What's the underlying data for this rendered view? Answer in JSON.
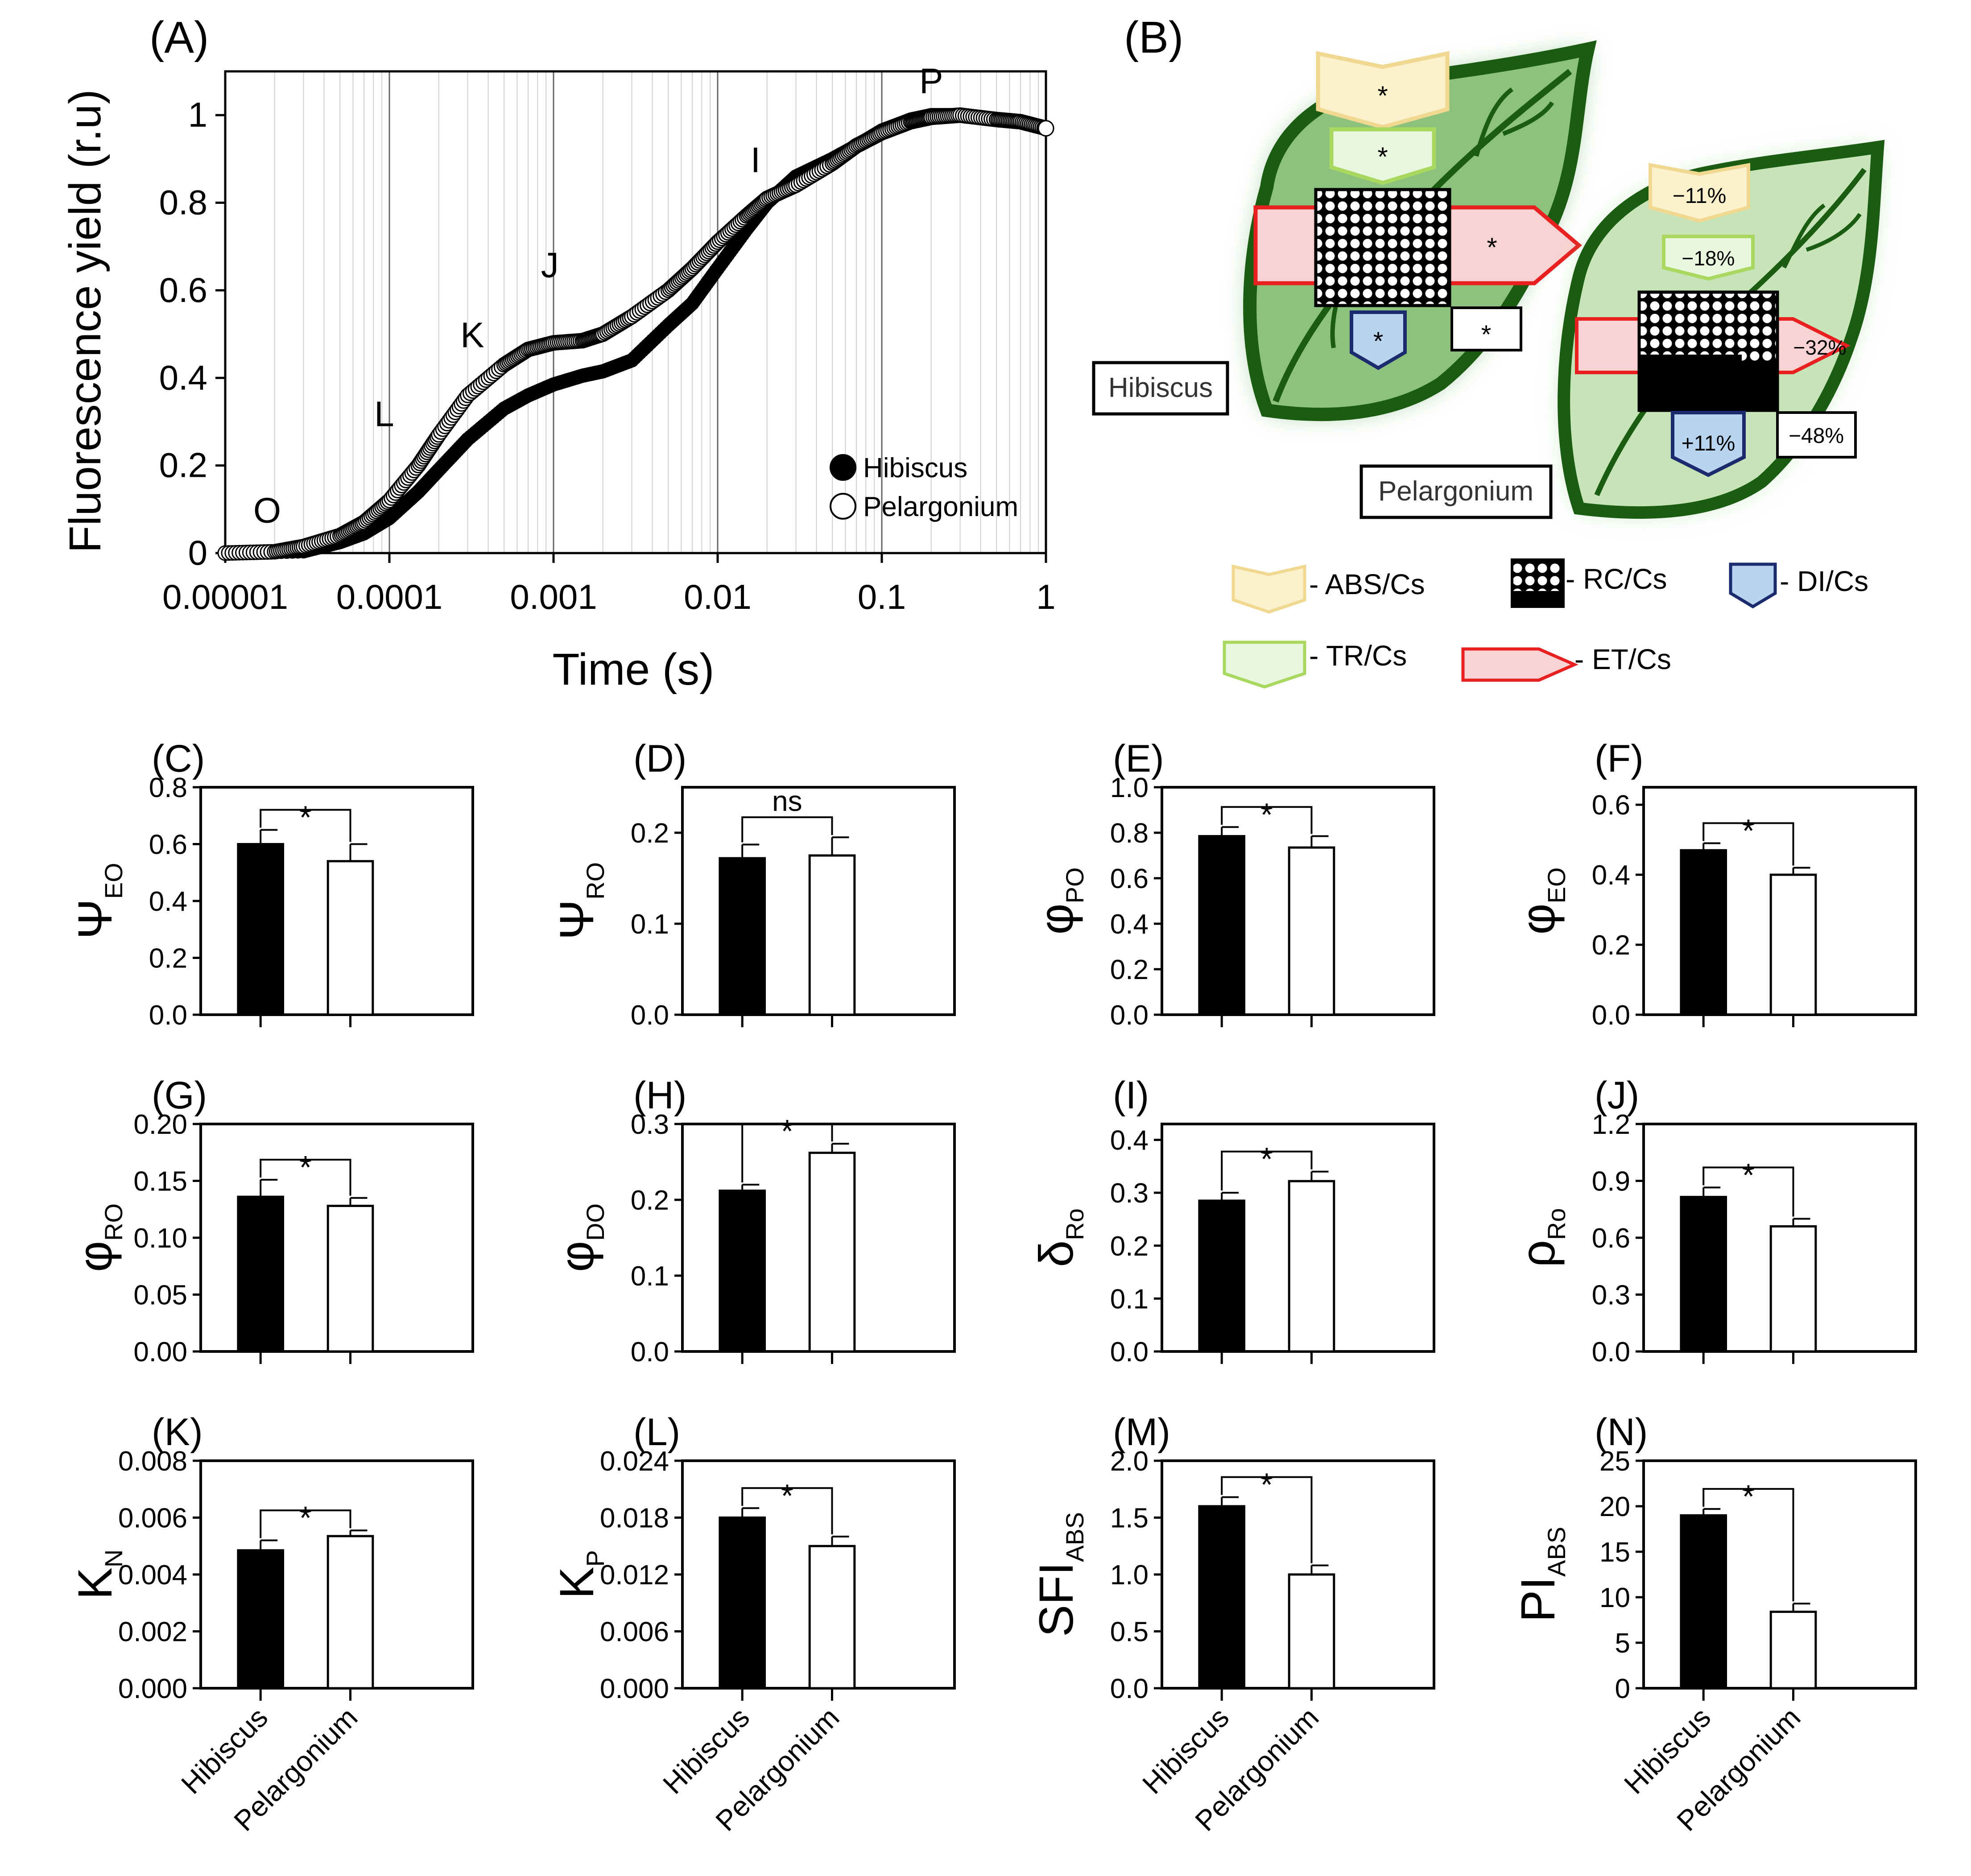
{
  "colors": {
    "hibiscus_fill": "#000000",
    "pelargonium_fill": "#ffffff",
    "leaf_dark": "#1a5c12",
    "leaf_light": "#b8dca8",
    "abs": "#f0d890",
    "abs_fill": "#fbf1cc",
    "tr": "#a8d860",
    "tr_fill": "#eaf7df",
    "et": "#e82020",
    "et_fill": "#f9d3d3",
    "di": "#1c2a6e",
    "di_fill": "#b8d4ee"
  },
  "panelA": {
    "label": "(A)",
    "type": "line",
    "ylabel": "Fluorescence yield (r.u)",
    "xlabel": "Time (s)",
    "xticks": [
      "0.00001",
      "0.0001",
      "0.001",
      "0.01",
      "0.1",
      "1"
    ],
    "yticks": [
      "0",
      "0.2",
      "0.4",
      "0.6",
      "0.8",
      "1"
    ],
    "xlim": [
      1e-05,
      1
    ],
    "ylim": [
      0,
      1.1
    ],
    "phase_labels": [
      {
        "text": "O",
        "t": 1.8e-05,
        "y": 0.07
      },
      {
        "text": "L",
        "t": 9.3e-05,
        "y": 0.29
      },
      {
        "text": "K",
        "t": 0.00032,
        "y": 0.47
      },
      {
        "text": "J",
        "t": 0.00095,
        "y": 0.63
      },
      {
        "text": "I",
        "t": 0.017,
        "y": 0.87
      },
      {
        "text": "P",
        "t": 0.2,
        "y": 1.05
      }
    ],
    "legend": [
      "Hibiscus",
      "Pelargonium"
    ],
    "series": [
      {
        "name": "Hibiscus",
        "points": [
          [
            1e-05,
            0
          ],
          [
            3e-05,
            0.004
          ],
          [
            5e-05,
            0.025
          ],
          [
            7e-05,
            0.045
          ],
          [
            0.0001,
            0.08
          ],
          [
            0.00015,
            0.14
          ],
          [
            0.0002,
            0.19
          ],
          [
            0.0003,
            0.26
          ],
          [
            0.0005,
            0.33
          ],
          [
            0.0007,
            0.36
          ],
          [
            0.001,
            0.385
          ],
          [
            0.0015,
            0.405
          ],
          [
            0.002,
            0.415
          ],
          [
            0.003,
            0.44
          ],
          [
            0.005,
            0.52
          ],
          [
            0.007,
            0.57
          ],
          [
            0.01,
            0.65
          ],
          [
            0.015,
            0.74
          ],
          [
            0.02,
            0.8
          ],
          [
            0.03,
            0.86
          ],
          [
            0.05,
            0.9
          ],
          [
            0.07,
            0.93
          ],
          [
            0.1,
            0.965
          ],
          [
            0.15,
            0.99
          ],
          [
            0.2,
            1.0
          ],
          [
            0.3,
            1.0
          ],
          [
            0.5,
            0.99
          ],
          [
            0.7,
            0.985
          ],
          [
            1,
            0.97
          ]
        ]
      },
      {
        "name": "Pelargonium",
        "points": [
          [
            1e-05,
            0
          ],
          [
            2e-05,
            0.003
          ],
          [
            3e-05,
            0.015
          ],
          [
            5e-05,
            0.04
          ],
          [
            7e-05,
            0.07
          ],
          [
            0.0001,
            0.12
          ],
          [
            0.00015,
            0.2
          ],
          [
            0.0002,
            0.27
          ],
          [
            0.0003,
            0.36
          ],
          [
            0.0005,
            0.43
          ],
          [
            0.0007,
            0.465
          ],
          [
            0.001,
            0.48
          ],
          [
            0.0015,
            0.485
          ],
          [
            0.002,
            0.5
          ],
          [
            0.003,
            0.54
          ],
          [
            0.005,
            0.6
          ],
          [
            0.007,
            0.65
          ],
          [
            0.01,
            0.71
          ],
          [
            0.015,
            0.77
          ],
          [
            0.02,
            0.81
          ],
          [
            0.03,
            0.84
          ],
          [
            0.05,
            0.89
          ],
          [
            0.07,
            0.93
          ],
          [
            0.1,
            0.96
          ],
          [
            0.15,
            0.985
          ],
          [
            0.2,
            0.995
          ],
          [
            0.3,
            1.0
          ],
          [
            0.5,
            0.99
          ],
          [
            0.7,
            0.985
          ],
          [
            1,
            0.97
          ]
        ]
      }
    ]
  },
  "panelB": {
    "label": "(B)",
    "hibiscus": {
      "name": "Hibiscus",
      "abs": "*",
      "tr": "*",
      "et": "*",
      "di": "*",
      "rc": "*"
    },
    "pelargonium": {
      "name": "Pelargonium",
      "abs": "−11%",
      "tr": "−18%",
      "et": "−32%",
      "di": "+11%",
      "rc": "−48%"
    },
    "legend": [
      "- ABS/Cs",
      "- RC/Cs",
      "- DI/Cs",
      "- TR/Cs",
      "- ET/Cs"
    ]
  },
  "chart_data": [
    {
      "label": "(C)",
      "type": "bar",
      "ylabel_main": "Ψ",
      "ylabel_sub": "EO",
      "categories": [
        "Hibiscus",
        "Pelargonium"
      ],
      "values": [
        0.6,
        0.54
      ],
      "errors": [
        0.05,
        0.06
      ],
      "ylim": [
        0,
        0.8
      ],
      "yticks": [
        "0.0",
        "0.2",
        "0.4",
        "0.6",
        "0.8"
      ],
      "sig": "*"
    },
    {
      "label": "(D)",
      "type": "bar",
      "ylabel_main": "Ψ",
      "ylabel_sub": "RO",
      "categories": [
        "Hibiscus",
        "Pelargonium"
      ],
      "values": [
        0.172,
        0.175
      ],
      "errors": [
        0.015,
        0.02
      ],
      "ylim": [
        0,
        0.25
      ],
      "yticks": [
        "0.0",
        "0.1",
        "0.2"
      ],
      "sig": "ns"
    },
    {
      "label": "(E)",
      "type": "bar",
      "ylabel_main": "φ",
      "ylabel_sub": "PO",
      "categories": [
        "Hibiscus",
        "Pelargonium"
      ],
      "values": [
        0.785,
        0.735
      ],
      "errors": [
        0.04,
        0.05
      ],
      "ylim": [
        0,
        1.0
      ],
      "yticks": [
        "0.0",
        "0.2",
        "0.4",
        "0.6",
        "0.8",
        "1.0"
      ],
      "sig": "*"
    },
    {
      "label": "(F)",
      "type": "bar",
      "ylabel_main": "φ",
      "ylabel_sub": "EO",
      "categories": [
        "Hibiscus",
        "Pelargonium"
      ],
      "values": [
        0.47,
        0.4
      ],
      "errors": [
        0.02,
        0.02
      ],
      "ylim": [
        0,
        0.65
      ],
      "yticks": [
        "0.0",
        "0.2",
        "0.4",
        "0.6"
      ],
      "sig": "*"
    },
    {
      "label": "(G)",
      "type": "bar",
      "ylabel_main": "φ",
      "ylabel_sub": "RO",
      "categories": [
        "Hibiscus",
        "Pelargonium"
      ],
      "values": [
        0.136,
        0.128
      ],
      "errors": [
        0.015,
        0.007
      ],
      "ylim": [
        0,
        0.2
      ],
      "yticks": [
        "0.00",
        "0.05",
        "0.10",
        "0.15",
        "0.20"
      ],
      "sig": "*"
    },
    {
      "label": "(H)",
      "type": "bar",
      "ylabel_main": "φ",
      "ylabel_sub": "DO",
      "categories": [
        "Hibiscus",
        "Pelargonium"
      ],
      "values": [
        0.212,
        0.262
      ],
      "errors": [
        0.008,
        0.012
      ],
      "ylim": [
        0,
        0.3
      ],
      "yticks": [
        "0.0",
        "0.1",
        "0.2",
        "0.3"
      ],
      "sig": "*"
    },
    {
      "label": "(I)",
      "type": "bar",
      "ylabel_main": "δ",
      "ylabel_sub": "Ro",
      "categories": [
        "Hibiscus",
        "Pelargonium"
      ],
      "values": [
        0.285,
        0.322
      ],
      "errors": [
        0.015,
        0.018
      ],
      "ylim": [
        0,
        0.43
      ],
      "yticks": [
        "0.0",
        "0.1",
        "0.2",
        "0.3",
        "0.4"
      ],
      "sig": "*"
    },
    {
      "label": "(J)",
      "type": "bar",
      "ylabel_main": "ρ",
      "ylabel_sub": "Ro",
      "categories": [
        "Hibiscus",
        "Pelargonium"
      ],
      "values": [
        0.815,
        0.66
      ],
      "errors": [
        0.05,
        0.04
      ],
      "ylim": [
        0,
        1.2
      ],
      "yticks": [
        "0.0",
        "0.3",
        "0.6",
        "0.9",
        "1.2"
      ],
      "sig": "*"
    },
    {
      "label": "(K)",
      "type": "bar",
      "ylabel_main": "K",
      "ylabel_sub": "N",
      "categories": [
        "Hibiscus",
        "Pelargonium"
      ],
      "values": [
        0.00485,
        0.00535
      ],
      "errors": [
        0.00035,
        0.0002
      ],
      "ylim": [
        0,
        0.008
      ],
      "yticks": [
        "0.000",
        "0.002",
        "0.004",
        "0.006",
        "0.008"
      ],
      "sig": "*"
    },
    {
      "label": "(L)",
      "type": "bar",
      "ylabel_main": "K",
      "ylabel_sub": "P",
      "categories": [
        "Hibiscus",
        "Pelargonium"
      ],
      "values": [
        0.018,
        0.015
      ],
      "errors": [
        0.001,
        0.001
      ],
      "ylim": [
        0,
        0.024
      ],
      "yticks": [
        "0.000",
        "0.006",
        "0.012",
        "0.018",
        "0.024"
      ],
      "sig": "*"
    },
    {
      "label": "(M)",
      "type": "bar",
      "ylabel_main": "SFI",
      "ylabel_sub": "ABS",
      "categories": [
        "Hibiscus",
        "Pelargonium"
      ],
      "values": [
        1.6,
        1.0
      ],
      "errors": [
        0.08,
        0.08
      ],
      "ylim": [
        0,
        2.0
      ],
      "yticks": [
        "0.0",
        "0.5",
        "1.0",
        "1.5",
        "2.0"
      ],
      "sig": "*"
    },
    {
      "label": "(N)",
      "type": "bar",
      "ylabel_main": "PI",
      "ylabel_sub": "ABS",
      "categories": [
        "Hibiscus",
        "Pelargonium"
      ],
      "values": [
        19,
        8.4
      ],
      "errors": [
        0.7,
        0.9
      ],
      "ylim": [
        0,
        25
      ],
      "yticks": [
        "0",
        "5",
        "10",
        "15",
        "20",
        "25"
      ],
      "sig": "*"
    }
  ]
}
